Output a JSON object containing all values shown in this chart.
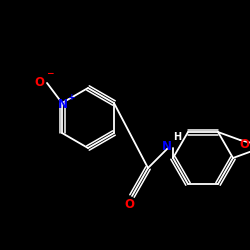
{
  "background_color": "#000000",
  "bond_color": "#ffffff",
  "atom_colors": {
    "O": "#ff0000",
    "N": "#0000ff",
    "C": "#ffffff"
  },
  "figsize": [
    2.5,
    2.5
  ],
  "dpi": 100
}
